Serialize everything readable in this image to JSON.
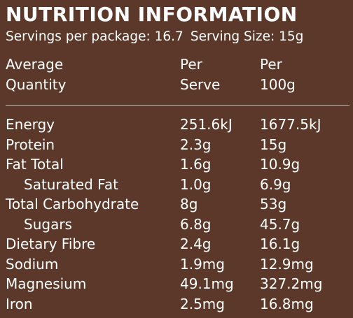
{
  "title": "NUTRITION INFORMATION",
  "servings_per_package": "Servings per package: 16.7",
  "serving_size": "Serving Size: 15g",
  "columns": {
    "col1": [
      "Average",
      "Quantity"
    ],
    "col2": [
      "Per",
      "Serve"
    ],
    "col3": [
      "Per",
      "100g"
    ]
  },
  "rows": [
    {
      "name": "Energy",
      "per_serve": "251.6kJ",
      "per_100g": "1677.5kJ"
    },
    {
      "name": "Protein",
      "per_serve": "2.3g",
      "per_100g": "15g"
    },
    {
      "name": "Fat Total",
      "per_serve": "1.6g",
      "per_100g": "10.9g"
    },
    {
      "name": "Saturated Fat",
      "per_serve": "1.0g",
      "per_100g": "6.9g"
    },
    {
      "name": "Total Carbohydrate",
      "per_serve": "8g",
      "per_100g": "53g"
    },
    {
      "name": "Sugars",
      "per_serve": "6.8g",
      "per_100g": "45.7g"
    },
    {
      "name": "Dietary Fibre",
      "per_serve": "2.4g",
      "per_100g": "16.1g"
    },
    {
      "name": "Sodium",
      "per_serve": "1.9mg",
      "per_100g": "12.9mg"
    },
    {
      "name": "Magnesium",
      "per_serve": "49.1mg",
      "per_100g": "327.2mg"
    },
    {
      "name": "Iron",
      "per_serve": "2.5mg",
      "per_100g": "16.8mg"
    }
  ],
  "colors": {
    "panel_background": "#5b3829",
    "text": "#ffffff",
    "divider": "#c9b7ab"
  }
}
